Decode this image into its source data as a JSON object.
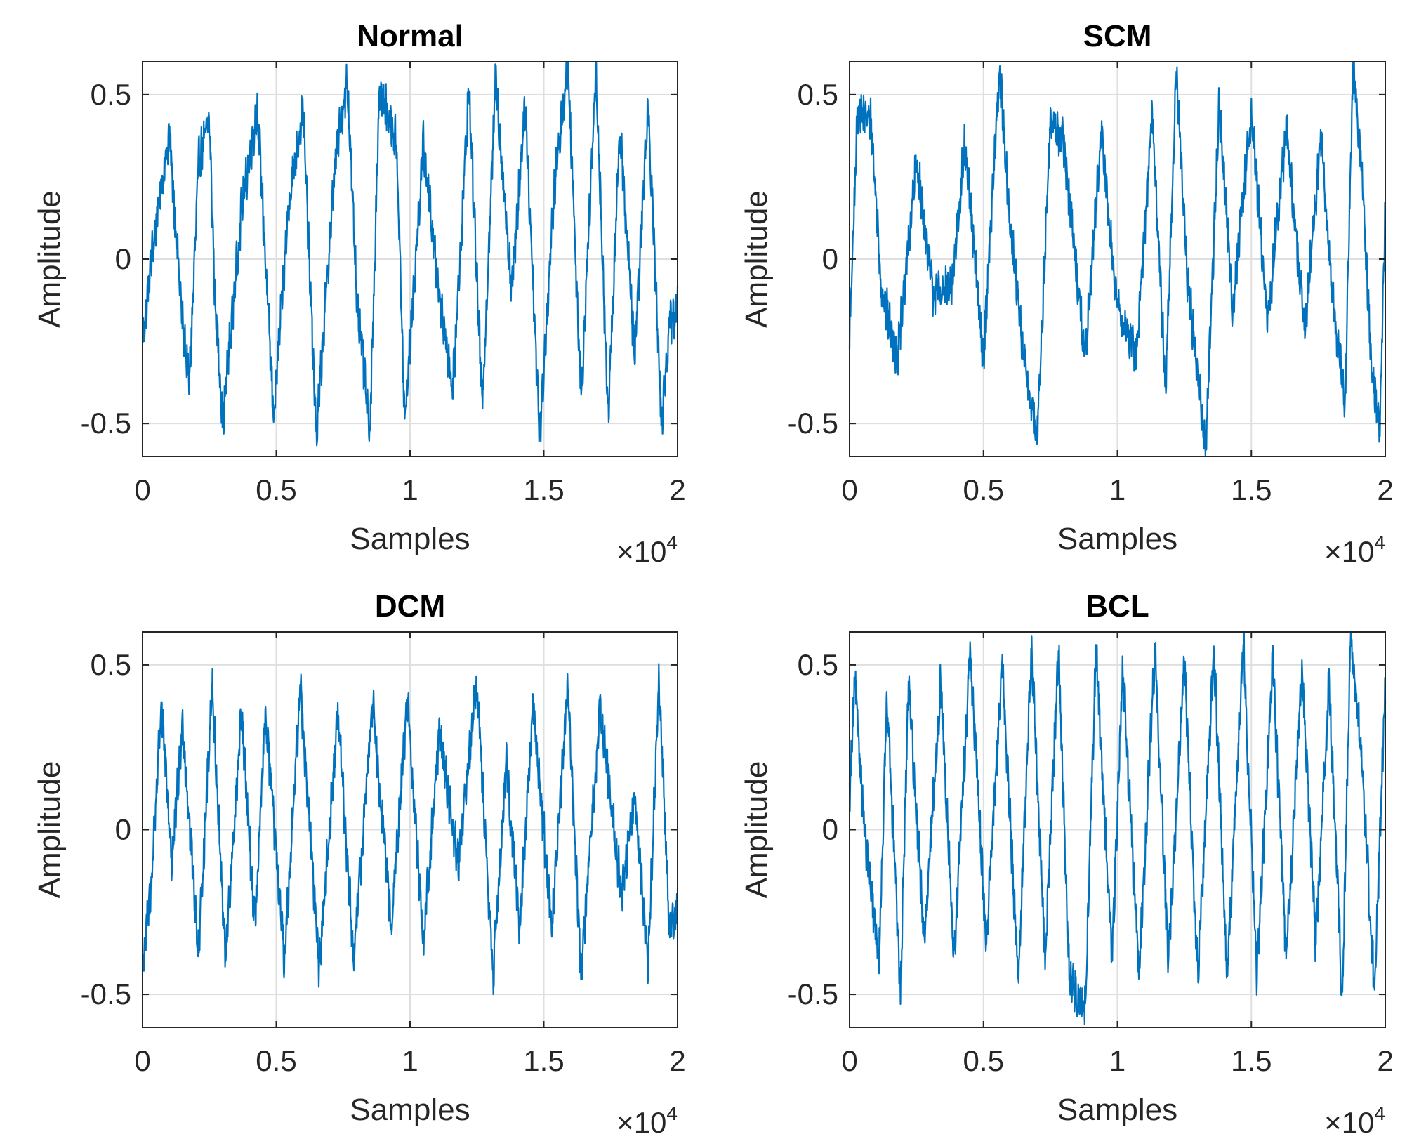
{
  "chart_data": [
    {
      "type": "line",
      "title": "Normal",
      "xlabel": "Samples",
      "ylabel": "Amplitude",
      "xlim": [
        0,
        20000
      ],
      "ylim": [
        -0.6,
        0.6
      ],
      "xticks": [
        0,
        5000,
        10000,
        15000,
        20000
      ],
      "xtick_labels": [
        "0",
        "0.5",
        "1",
        "1.5",
        "2"
      ],
      "yticks": [
        -0.5,
        0,
        0.5
      ],
      "ytick_labels": [
        "-0.5",
        "0",
        "0.5"
      ],
      "x_exponent_base": "×10",
      "x_exponent_power": "4",
      "grid": true,
      "color": "#0072BD",
      "series": [
        {
          "name": "Normal",
          "x": [
            0,
            400,
            1000,
            1500,
            1750,
            2100,
            2500,
            2700,
            3000,
            3700,
            4300,
            4900,
            5500,
            6000,
            6500,
            7200,
            7650,
            8000,
            8500,
            8850,
            9500,
            9800,
            10500,
            11000,
            11600,
            12200,
            12700,
            13200,
            13800,
            14300,
            14850,
            15400,
            15900,
            16400,
            16950,
            17400,
            17850,
            18400,
            18900,
            19400,
            19700,
            20000
          ],
          "y": [
            -0.25,
            0.05,
            0.38,
            -0.2,
            -0.38,
            0.3,
            0.42,
            -0.1,
            -0.5,
            0.15,
            0.46,
            -0.48,
            0.2,
            0.46,
            -0.54,
            0.3,
            0.55,
            -0.1,
            -0.54,
            0.52,
            0.35,
            -0.5,
            0.35,
            -0.05,
            -0.4,
            0.52,
            -0.45,
            0.55,
            -0.1,
            0.48,
            -0.54,
            0.22,
            0.6,
            -0.42,
            0.58,
            -0.48,
            0.4,
            -0.3,
            0.48,
            -0.5,
            -0.2,
            -0.15
          ]
        }
      ]
    },
    {
      "type": "line",
      "title": "SCM",
      "xlabel": "Samples",
      "ylabel": "Amplitude",
      "xlim": [
        0,
        20000
      ],
      "ylim": [
        -0.6,
        0.6
      ],
      "xticks": [
        0,
        5000,
        10000,
        15000,
        20000
      ],
      "xtick_labels": [
        "0",
        "0.5",
        "1",
        "1.5",
        "2"
      ],
      "yticks": [
        -0.5,
        0,
        0.5
      ],
      "ytick_labels": [
        "-0.5",
        "0",
        "0.5"
      ],
      "x_exponent_base": "×10",
      "x_exponent_power": "4",
      "grid": true,
      "color": "#0072BD",
      "series": [
        {
          "name": "SCM",
          "x": [
            0,
            300,
            800,
            1200,
            1800,
            2500,
            3100,
            3800,
            4300,
            5000,
            5600,
            6000,
            6500,
            7000,
            7500,
            8000,
            8800,
            9400,
            10000,
            10700,
            11300,
            11800,
            12200,
            12600,
            13000,
            13300,
            13800,
            14300,
            15000,
            15600,
            16300,
            17000,
            17600,
            18000,
            18500,
            18800,
            19100,
            19500,
            19800,
            20000
          ],
          "y": [
            -0.25,
            0.45,
            0.42,
            -0.1,
            -0.3,
            0.3,
            -0.1,
            -0.1,
            0.35,
            -0.3,
            0.58,
            0.1,
            -0.3,
            -0.55,
            0.42,
            0.35,
            -0.3,
            0.38,
            -0.15,
            -0.3,
            0.45,
            -0.4,
            0.58,
            -0.05,
            -0.35,
            -0.58,
            0.48,
            -0.15,
            0.45,
            -0.2,
            0.4,
            -0.22,
            0.38,
            -0.1,
            -0.45,
            0.6,
            0.3,
            -0.35,
            -0.5,
            0.15
          ]
        }
      ]
    },
    {
      "type": "line",
      "title": "DCM",
      "xlabel": "Samples",
      "ylabel": "Amplitude",
      "xlim": [
        0,
        20000
      ],
      "ylim": [
        -0.6,
        0.6
      ],
      "xticks": [
        0,
        5000,
        10000,
        15000,
        20000
      ],
      "xtick_labels": [
        "0",
        "0.5",
        "1",
        "1.5",
        "2"
      ],
      "yticks": [
        -0.5,
        0,
        0.5
      ],
      "ytick_labels": [
        "-0.5",
        "0",
        "0.5"
      ],
      "x_exponent_base": "×10",
      "x_exponent_power": "4",
      "grid": true,
      "color": "#0072BD",
      "series": [
        {
          "name": "DCM",
          "x": [
            0,
            300,
            700,
            1100,
            1500,
            2100,
            2600,
            3100,
            3700,
            4200,
            4600,
            5300,
            5900,
            6600,
            7300,
            7900,
            8600,
            9300,
            9900,
            10500,
            11100,
            11800,
            12500,
            13100,
            13600,
            14100,
            14600,
            15300,
            15900,
            16400,
            17100,
            17900,
            18400,
            18900,
            19300,
            19700,
            20000
          ],
          "y": [
            -0.4,
            -0.2,
            0.38,
            -0.1,
            0.32,
            -0.38,
            0.45,
            -0.4,
            0.35,
            -0.3,
            0.35,
            -0.4,
            0.44,
            -0.42,
            0.35,
            -0.4,
            0.4,
            -0.3,
            0.4,
            -0.35,
            0.3,
            -0.1,
            0.45,
            -0.45,
            0.2,
            -0.3,
            0.38,
            -0.3,
            0.45,
            -0.45,
            0.38,
            -0.2,
            0.1,
            -0.4,
            0.45,
            -0.3,
            -0.22
          ]
        }
      ]
    },
    {
      "type": "line",
      "title": "BCL",
      "xlabel": "Samples",
      "ylabel": "Amplitude",
      "xlim": [
        0,
        20000
      ],
      "ylim": [
        -0.6,
        0.6
      ],
      "xticks": [
        0,
        5000,
        10000,
        15000,
        20000
      ],
      "xtick_labels": [
        "0",
        "0.5",
        "1",
        "1.5",
        "2"
      ],
      "yticks": [
        -0.5,
        0,
        0.5
      ],
      "ytick_labels": [
        "-0.5",
        "0",
        "0.5"
      ],
      "x_exponent_base": "×10",
      "x_exponent_power": "4",
      "grid": true,
      "color": "#0072BD",
      "series": [
        {
          "name": "BCL",
          "x": [
            0,
            200,
            600,
            1100,
            1400,
            1900,
            2200,
            2800,
            3400,
            3900,
            4500,
            5100,
            5700,
            6300,
            6800,
            7300,
            7800,
            8200,
            8800,
            9200,
            9800,
            10200,
            10800,
            11400,
            11900,
            12500,
            13000,
            13600,
            14100,
            14700,
            15200,
            15800,
            16300,
            16900,
            17400,
            17900,
            18400,
            18700,
            19100,
            19600,
            20000
          ],
          "y": [
            0.1,
            0.45,
            -0.05,
            -0.4,
            0.42,
            -0.5,
            0.45,
            -0.35,
            0.45,
            -0.4,
            0.55,
            -0.35,
            0.5,
            -0.45,
            0.55,
            -0.4,
            0.55,
            -0.45,
            -0.55,
            0.55,
            -0.4,
            0.5,
            -0.45,
            0.55,
            -0.4,
            0.52,
            -0.45,
            0.55,
            -0.45,
            0.58,
            -0.45,
            0.52,
            -0.4,
            0.5,
            -0.35,
            0.45,
            -0.52,
            0.58,
            0.25,
            -0.5,
            0.45
          ]
        }
      ]
    }
  ]
}
